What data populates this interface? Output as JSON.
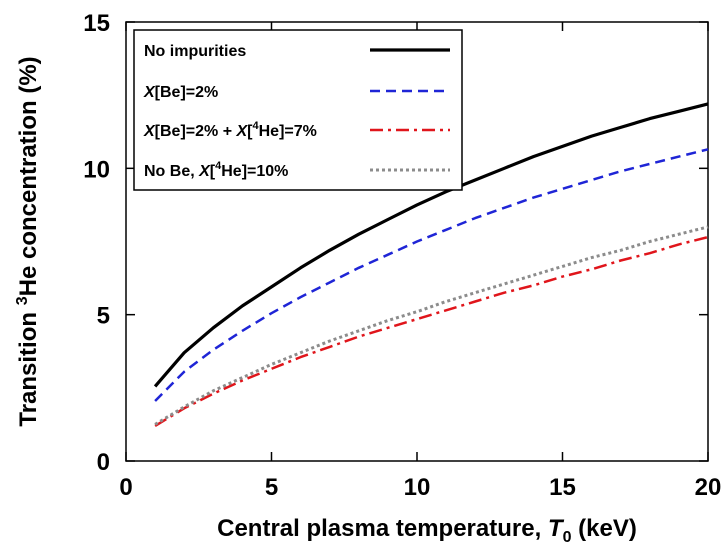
{
  "chart_data": {
    "type": "line",
    "xlabel": {
      "prefix": "Central plasma temperature, ",
      "var": "T",
      "sub": "0",
      "suffix": " (keV)"
    },
    "ylabel": {
      "prefix": "Transition ",
      "sup": "3",
      "suffix": "He concentration (%)"
    },
    "xlim": [
      0,
      20
    ],
    "ylim": [
      0,
      15
    ],
    "xticks": [
      "0",
      "5",
      "10",
      "15",
      "20"
    ],
    "yticks": [
      "0",
      "5",
      "10",
      "15"
    ],
    "grid": false,
    "legend_position": "top-left",
    "x": [
      1,
      2,
      3,
      4,
      5,
      6,
      7,
      8,
      9,
      10,
      11,
      12,
      13,
      14,
      15,
      16,
      17,
      18,
      19,
      20
    ],
    "series": [
      {
        "name": "No impurities",
        "legend": [
          {
            "t": "No impurities"
          }
        ],
        "color": "#000000",
        "dash": "",
        "width": 3.2,
        "values": [
          2.55,
          3.7,
          4.55,
          5.3,
          5.95,
          6.6,
          7.2,
          7.75,
          8.25,
          8.75,
          9.2,
          9.6,
          10.0,
          10.4,
          10.75,
          11.1,
          11.4,
          11.7,
          11.95,
          12.2
        ]
      },
      {
        "name": "X[Be]=2%",
        "legend": [
          {
            "t": "X",
            "i": true
          },
          {
            "t": "[Be]=2%"
          }
        ],
        "color": "#1f25d6",
        "dash": "10,6",
        "width": 2.5,
        "values": [
          2.05,
          3.05,
          3.8,
          4.45,
          5.05,
          5.6,
          6.1,
          6.6,
          7.05,
          7.5,
          7.9,
          8.3,
          8.65,
          9.0,
          9.3,
          9.6,
          9.9,
          10.15,
          10.4,
          10.65
        ]
      },
      {
        "name": "X[Be]=2% + X[4He]=7%",
        "legend": [
          {
            "t": "X",
            "i": true
          },
          {
            "t": "[Be]=2% + "
          },
          {
            "t": "X",
            "i": true
          },
          {
            "t": "["
          },
          {
            "t": "4",
            "sup": true
          },
          {
            "t": "He]=7%"
          }
        ],
        "color": "#e0151b",
        "dash": "13,5,3,5",
        "width": 2.5,
        "values": [
          1.2,
          1.8,
          2.3,
          2.75,
          3.15,
          3.55,
          3.9,
          4.25,
          4.55,
          4.85,
          5.15,
          5.45,
          5.75,
          6.0,
          6.3,
          6.55,
          6.85,
          7.1,
          7.4,
          7.65
        ]
      },
      {
        "name": "No Be, X[4He]=10%",
        "legend": [
          {
            "t": "No Be, "
          },
          {
            "t": "X",
            "i": true
          },
          {
            "t": "["
          },
          {
            "t": "4",
            "sup": true
          },
          {
            "t": "He]=10%"
          }
        ],
        "color": "#8c8c8c",
        "dash": "3,3",
        "width": 3,
        "values": [
          1.25,
          1.85,
          2.4,
          2.85,
          3.3,
          3.7,
          4.1,
          4.45,
          4.8,
          5.1,
          5.45,
          5.75,
          6.05,
          6.35,
          6.65,
          6.95,
          7.2,
          7.5,
          7.75,
          8.0
        ]
      }
    ]
  }
}
